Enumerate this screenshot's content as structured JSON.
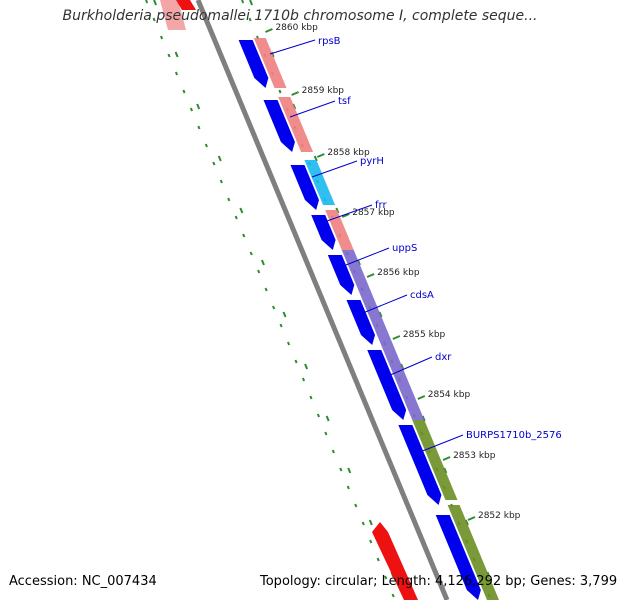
{
  "title": "Burkholderia pseudomallei 1710b chromosome I, complete seque...",
  "footer": {
    "accession": "Accession: NC_007434",
    "topology": "Topology: circular",
    "length": "Length: 4,126,292 bp",
    "genes": "Genes: 3,799"
  },
  "colors": {
    "backbone": "#7f7f7f",
    "tick": "#2e8b2e",
    "gene_label": "#0000cc",
    "blue_cds": "#0000ee",
    "salmon": "#f08080",
    "cyan": "#1ab8f0",
    "purple": "#7b68cc",
    "olive": "#6b8e23",
    "red": "#ee1111"
  },
  "kbp_labels": [
    "2860 kbp",
    "2859 kbp",
    "2858 kbp",
    "2857 kbp",
    "2856 kbp",
    "2855 kbp",
    "2854 kbp",
    "2853 kbp",
    "2852 kbp"
  ],
  "genes": [
    {
      "name": "rpsB",
      "kind": "salmon"
    },
    {
      "name": "tsf",
      "kind": "salmon"
    },
    {
      "name": "pyrH",
      "kind": "cyan"
    },
    {
      "name": "frr",
      "kind": "salmon"
    },
    {
      "name": "uppS",
      "kind": "purple"
    },
    {
      "name": "cdsA",
      "kind": "purple"
    },
    {
      "name": "dxr",
      "kind": "purple"
    },
    {
      "name": "BURPS1710b_2576",
      "kind": "olive"
    }
  ]
}
